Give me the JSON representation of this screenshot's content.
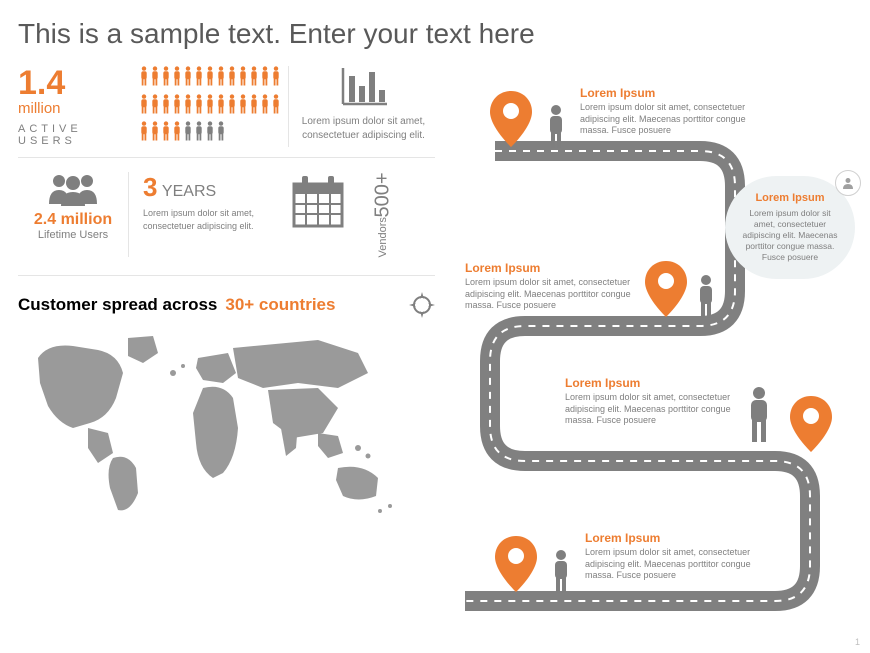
{
  "title": "This is a sample text. Enter your text here",
  "colors": {
    "accent": "#ed7d31",
    "gray": "#7f7f7f",
    "icon": "#7f7f7f",
    "bg_callout": "#eef2f3"
  },
  "active_users": {
    "value": "1.4",
    "unit": "million",
    "label": "ACTIVE USERS",
    "people_count": 34,
    "people_colors_row_split": {
      "orange": 30,
      "gray": 4
    }
  },
  "chart": {
    "desc": "Lorem ipsum dolor sit amet, consectetuer adipiscing elit."
  },
  "lifetime_users": {
    "value": "2.4 million",
    "label": "Lifetime Users"
  },
  "years": {
    "value": "3",
    "label": "YEARS",
    "desc": "Lorem ipsum dolor sit amet, consectetuer adipiscing elit."
  },
  "vendors": {
    "value": "500+",
    "label": "Vendors"
  },
  "spread": {
    "prefix": "Customer spread across ",
    "countries": "30+ countries"
  },
  "roadmap": {
    "stops": [
      {
        "title": "Lorem Ipsum",
        "body": "Lorem ipsum dolor sit amet, consectetuer adipiscing elit. Maecenas porttitor congue massa. Fusce posuere"
      },
      {
        "title": "Lorem Ipsum",
        "body": "Lorem ipsum dolor sit amet, consectetuer adipiscing elit. Maecenas porttitor congue massa. Fusce posuere"
      },
      {
        "title": "Lorem Ipsum",
        "body": "Lorem ipsum dolor sit amet, consectetuer adipiscing elit. Maecenas porttitor congue massa. Fusce posuere"
      },
      {
        "title": "Lorem Ipsum",
        "body": "Lorem ipsum dolor sit amet, consectetuer adipiscing elit. Maecenas porttitor congue massa. Fusce posuere"
      }
    ],
    "callout": {
      "title": "Lorem Ipsum",
      "body": "Lorem ipsum dolor sit amet, consectetuer adipiscing elit. Maecenas porttitor congue massa. Fusce posuere"
    }
  },
  "page_number": "1"
}
